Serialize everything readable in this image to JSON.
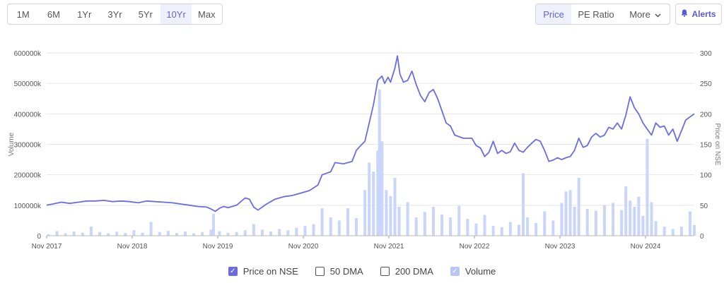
{
  "toolbar": {
    "ranges": [
      "1M",
      "6M",
      "1Yr",
      "3Yr",
      "5Yr",
      "10Yr",
      "Max"
    ],
    "active_range": "10Yr",
    "views": [
      "Price",
      "PE Ratio",
      "More"
    ],
    "active_view": "Price",
    "alerts_label": "Alerts"
  },
  "legend": [
    {
      "label": "Price on NSE",
      "checked": true
    },
    {
      "label": "50 DMA",
      "checked": false
    },
    {
      "label": "200 DMA",
      "checked": false
    },
    {
      "label": "Volume",
      "checked": true
    }
  ],
  "colors": {
    "price": "#6b6be2",
    "volume": "#c9d6fa",
    "accent": "#5b5bd6",
    "grid": "#e6e6e6"
  },
  "chart_data": {
    "type": "line",
    "xlabel": "",
    "ylabel_left": "Volume",
    "ylabel_right": "Price on NSE",
    "x_ticks": [
      "Nov 2017",
      "Nov 2018",
      "Nov 2019",
      "Nov 2020",
      "Nov 2021",
      "Nov 2022",
      "Nov 2023",
      "Nov 2024"
    ],
    "x_range": [
      2017.83,
      2025.4
    ],
    "y_left_ticks": [
      "0",
      "100000k",
      "200000k",
      "300000k",
      "400000k",
      "500000k",
      "600000k"
    ],
    "y_left_range": [
      0,
      600000000
    ],
    "y_right_ticks": [
      "0",
      "50",
      "100",
      "150",
      "200",
      "250",
      "300"
    ],
    "y_right_range": [
      0,
      300
    ],
    "grid": true,
    "series": [
      {
        "name": "Price on NSE",
        "axis": "right",
        "points": [
          [
            2017.83,
            50
          ],
          [
            2017.9,
            52
          ],
          [
            2018.0,
            55
          ],
          [
            2018.1,
            53
          ],
          [
            2018.2,
            55
          ],
          [
            2018.3,
            57
          ],
          [
            2018.4,
            57
          ],
          [
            2018.5,
            58
          ],
          [
            2018.6,
            56
          ],
          [
            2018.7,
            57
          ],
          [
            2018.8,
            56
          ],
          [
            2018.9,
            54
          ],
          [
            2019.0,
            57
          ],
          [
            2019.1,
            56
          ],
          [
            2019.2,
            55
          ],
          [
            2019.3,
            54
          ],
          [
            2019.4,
            52
          ],
          [
            2019.5,
            50
          ],
          [
            2019.6,
            48
          ],
          [
            2019.7,
            47
          ],
          [
            2019.75,
            44
          ],
          [
            2019.8,
            40
          ],
          [
            2019.85,
            45
          ],
          [
            2019.9,
            48
          ],
          [
            2019.95,
            46
          ],
          [
            2020.05,
            50
          ],
          [
            2020.15,
            62
          ],
          [
            2020.2,
            60
          ],
          [
            2020.25,
            47
          ],
          [
            2020.3,
            42
          ],
          [
            2020.4,
            52
          ],
          [
            2020.5,
            60
          ],
          [
            2020.6,
            64
          ],
          [
            2020.7,
            66
          ],
          [
            2020.8,
            70
          ],
          [
            2020.9,
            74
          ],
          [
            2021.0,
            83
          ],
          [
            2021.05,
            100
          ],
          [
            2021.15,
            105
          ],
          [
            2021.2,
            120
          ],
          [
            2021.3,
            118
          ],
          [
            2021.4,
            122
          ],
          [
            2021.45,
            140
          ],
          [
            2021.5,
            148
          ],
          [
            2021.55,
            155
          ],
          [
            2021.6,
            185
          ],
          [
            2021.65,
            215
          ],
          [
            2021.7,
            255
          ],
          [
            2021.75,
            262
          ],
          [
            2021.78,
            250
          ],
          [
            2021.82,
            260
          ],
          [
            2021.85,
            252
          ],
          [
            2021.9,
            275
          ],
          [
            2021.93,
            295
          ],
          [
            2021.96,
            265
          ],
          [
            2022.0,
            252
          ],
          [
            2022.05,
            255
          ],
          [
            2022.1,
            270
          ],
          [
            2022.15,
            248
          ],
          [
            2022.2,
            230
          ],
          [
            2022.25,
            220
          ],
          [
            2022.3,
            235
          ],
          [
            2022.35,
            240
          ],
          [
            2022.4,
            225
          ],
          [
            2022.5,
            185
          ],
          [
            2022.55,
            180
          ],
          [
            2022.6,
            165
          ],
          [
            2022.7,
            160
          ],
          [
            2022.8,
            160
          ],
          [
            2022.85,
            148
          ],
          [
            2022.9,
            144
          ],
          [
            2022.95,
            130
          ],
          [
            2023.0,
            137
          ],
          [
            2023.05,
            155
          ],
          [
            2023.1,
            135
          ],
          [
            2023.15,
            140
          ],
          [
            2023.2,
            135
          ],
          [
            2023.25,
            138
          ],
          [
            2023.3,
            152
          ],
          [
            2023.35,
            140
          ],
          [
            2023.4,
            137
          ],
          [
            2023.45,
            145
          ],
          [
            2023.5,
            152
          ],
          [
            2023.55,
            158
          ],
          [
            2023.6,
            155
          ],
          [
            2023.65,
            140
          ],
          [
            2023.7,
            122
          ],
          [
            2023.75,
            124
          ],
          [
            2023.8,
            128
          ],
          [
            2023.85,
            125
          ],
          [
            2023.9,
            128
          ],
          [
            2023.95,
            130
          ],
          [
            2024.0,
            140
          ],
          [
            2024.05,
            160
          ],
          [
            2024.1,
            145
          ],
          [
            2024.15,
            148
          ],
          [
            2024.2,
            162
          ],
          [
            2024.25,
            168
          ],
          [
            2024.3,
            162
          ],
          [
            2024.35,
            165
          ],
          [
            2024.4,
            178
          ],
          [
            2024.45,
            175
          ],
          [
            2024.5,
            185
          ],
          [
            2024.55,
            175
          ],
          [
            2024.6,
            198
          ],
          [
            2024.65,
            228
          ],
          [
            2024.7,
            210
          ],
          [
            2024.75,
            200
          ],
          [
            2024.8,
            185
          ],
          [
            2024.85,
            175
          ],
          [
            2024.9,
            165
          ],
          [
            2024.95,
            185
          ],
          [
            2025.0,
            178
          ],
          [
            2025.05,
            180
          ],
          [
            2025.1,
            165
          ],
          [
            2025.15,
            175
          ],
          [
            2025.2,
            155
          ],
          [
            2025.25,
            172
          ],
          [
            2025.3,
            190
          ],
          [
            2025.35,
            195
          ],
          [
            2025.4,
            200
          ]
        ]
      },
      {
        "name": "Volume",
        "axis": "left",
        "points": [
          [
            2017.85,
            5000000
          ],
          [
            2017.95,
            15000000
          ],
          [
            2018.05,
            8000000
          ],
          [
            2018.15,
            14000000
          ],
          [
            2018.25,
            10000000
          ],
          [
            2018.35,
            30000000
          ],
          [
            2018.45,
            12000000
          ],
          [
            2018.55,
            8000000
          ],
          [
            2018.65,
            13000000
          ],
          [
            2018.75,
            9000000
          ],
          [
            2018.85,
            18000000
          ],
          [
            2018.95,
            10000000
          ],
          [
            2019.05,
            45000000
          ],
          [
            2019.15,
            12000000
          ],
          [
            2019.25,
            16000000
          ],
          [
            2019.35,
            9000000
          ],
          [
            2019.45,
            14000000
          ],
          [
            2019.55,
            8000000
          ],
          [
            2019.65,
            12000000
          ],
          [
            2019.75,
            20000000
          ],
          [
            2019.78,
            72000000
          ],
          [
            2019.85,
            15000000
          ],
          [
            2019.95,
            9000000
          ],
          [
            2020.05,
            12000000
          ],
          [
            2020.15,
            18000000
          ],
          [
            2020.25,
            38000000
          ],
          [
            2020.35,
            20000000
          ],
          [
            2020.45,
            14000000
          ],
          [
            2020.55,
            22000000
          ],
          [
            2020.65,
            18000000
          ],
          [
            2020.75,
            26000000
          ],
          [
            2020.85,
            32000000
          ],
          [
            2020.95,
            38000000
          ],
          [
            2021.05,
            90000000
          ],
          [
            2021.15,
            60000000
          ],
          [
            2021.25,
            50000000
          ],
          [
            2021.35,
            90000000
          ],
          [
            2021.45,
            58000000
          ],
          [
            2021.55,
            150000000
          ],
          [
            2021.6,
            240000000
          ],
          [
            2021.65,
            210000000
          ],
          [
            2021.7,
            280000000
          ],
          [
            2021.72,
            480000000
          ],
          [
            2021.75,
            310000000
          ],
          [
            2021.8,
            150000000
          ],
          [
            2021.85,
            130000000
          ],
          [
            2021.9,
            190000000
          ],
          [
            2021.95,
            95000000
          ],
          [
            2022.05,
            110000000
          ],
          [
            2022.15,
            60000000
          ],
          [
            2022.25,
            78000000
          ],
          [
            2022.35,
            95000000
          ],
          [
            2022.45,
            70000000
          ],
          [
            2022.55,
            60000000
          ],
          [
            2022.65,
            98000000
          ],
          [
            2022.75,
            55000000
          ],
          [
            2022.85,
            40000000
          ],
          [
            2022.95,
            68000000
          ],
          [
            2023.05,
            32000000
          ],
          [
            2023.15,
            28000000
          ],
          [
            2023.25,
            45000000
          ],
          [
            2023.35,
            36000000
          ],
          [
            2023.4,
            205000000
          ],
          [
            2023.45,
            60000000
          ],
          [
            2023.55,
            42000000
          ],
          [
            2023.65,
            80000000
          ],
          [
            2023.75,
            50000000
          ],
          [
            2023.85,
            108000000
          ],
          [
            2023.9,
            145000000
          ],
          [
            2023.95,
            150000000
          ],
          [
            2024.0,
            95000000
          ],
          [
            2024.05,
            190000000
          ],
          [
            2024.15,
            88000000
          ],
          [
            2024.25,
            82000000
          ],
          [
            2024.35,
            100000000
          ],
          [
            2024.45,
            108000000
          ],
          [
            2024.55,
            84000000
          ],
          [
            2024.6,
            162000000
          ],
          [
            2024.65,
            115000000
          ],
          [
            2024.7,
            95000000
          ],
          [
            2024.75,
            128000000
          ],
          [
            2024.8,
            65000000
          ],
          [
            2024.85,
            318000000
          ],
          [
            2024.9,
            110000000
          ],
          [
            2024.95,
            48000000
          ],
          [
            2025.05,
            30000000
          ],
          [
            2025.15,
            22000000
          ],
          [
            2025.25,
            30000000
          ],
          [
            2025.35,
            80000000
          ],
          [
            2025.4,
            35000000
          ]
        ]
      }
    ]
  }
}
